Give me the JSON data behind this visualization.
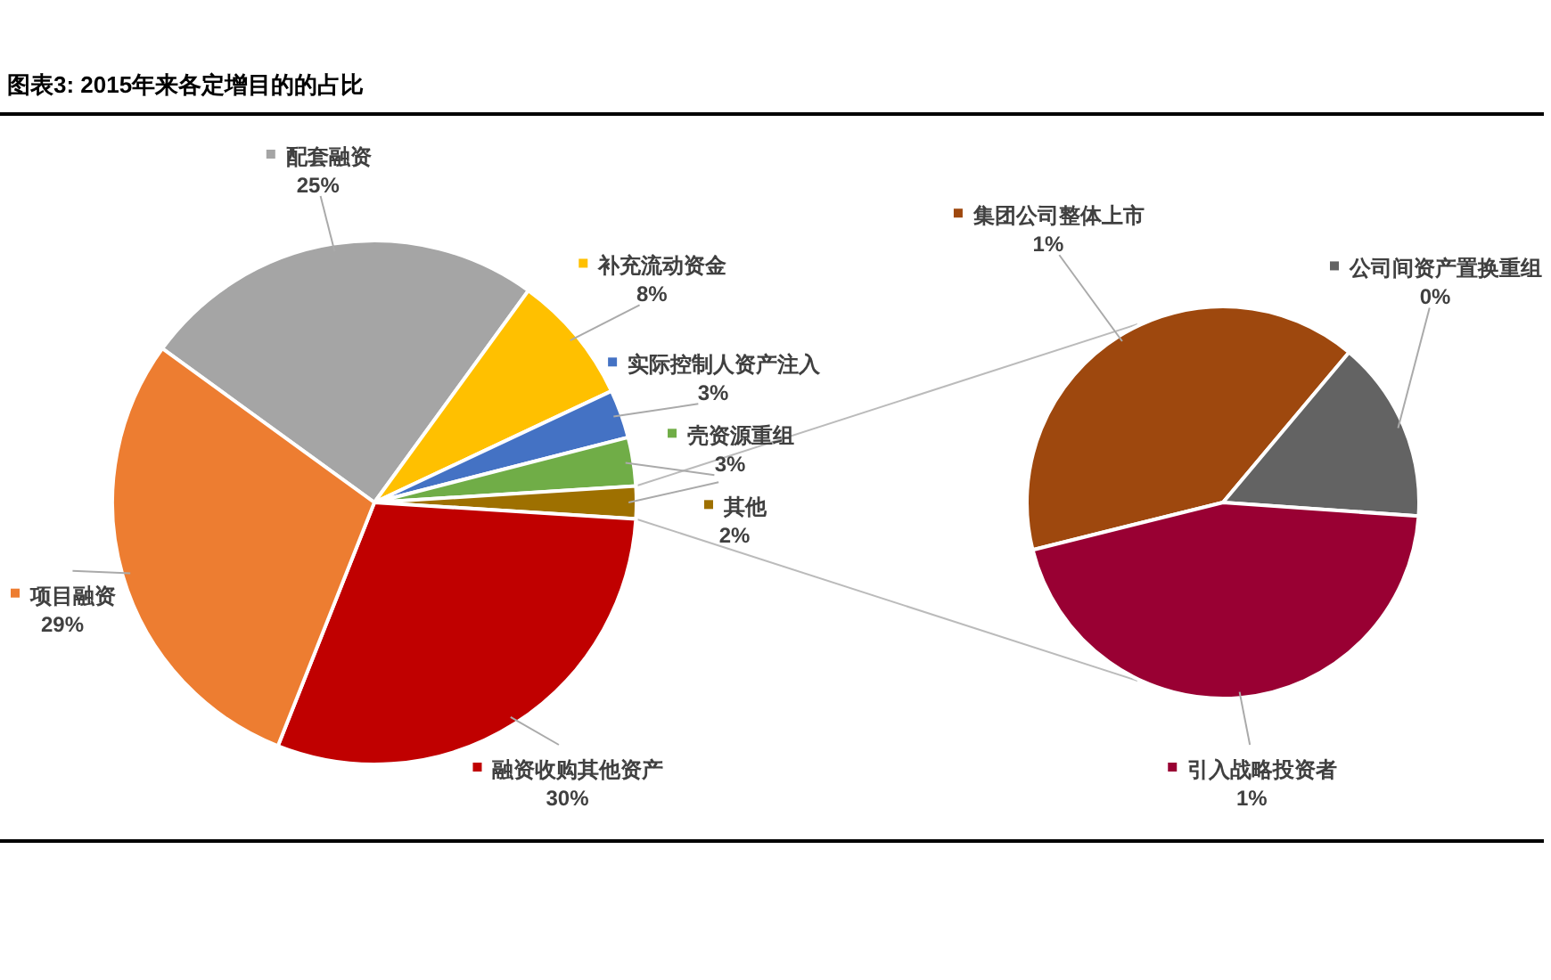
{
  "chart_data": [
    {
      "type": "pie",
      "title": "图表3: 2015年来各定增目的的占比",
      "categories": [
        "配套融资",
        "补充流动资金",
        "实际控制人资产注入",
        "壳资源重组",
        "其他",
        "融资收购其他资产",
        "项目融资"
      ],
      "values": [
        25,
        8,
        3,
        3,
        2,
        30,
        29
      ],
      "value_labels": [
        "25%",
        "8%",
        "3%",
        "3%",
        "2%",
        "30%",
        "29%"
      ],
      "colors": [
        "#a5a5a5",
        "#ffc000",
        "#4472c4",
        "#70ad47",
        "#9e7000",
        "#c00000",
        "#ed7d31"
      ],
      "legend": "right"
    },
    {
      "type": "pie",
      "categories": [
        "集团公司整体上市",
        "公司间资产置换重组",
        "引入战略投资者"
      ],
      "values": [
        0.8,
        0.3,
        0.9
      ],
      "value_labels": [
        "1%",
        "0%",
        "1%"
      ],
      "colors": [
        "#9e480e",
        "#636363",
        "#990033"
      ],
      "legend": "right"
    }
  ]
}
